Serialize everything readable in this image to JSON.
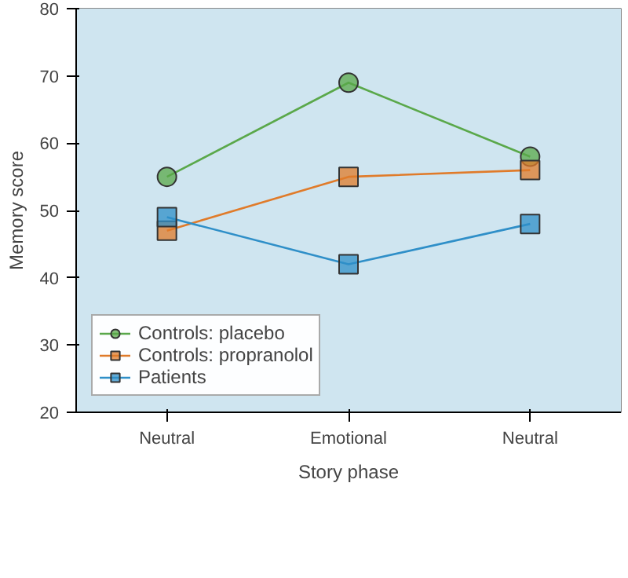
{
  "chart_data": {
    "type": "line",
    "xlabel": "Story phase",
    "ylabel": "Memory score",
    "categories": [
      "Neutral",
      "Emotional",
      "Neutral"
    ],
    "ylim": [
      20,
      80
    ],
    "yticks": [
      20,
      30,
      40,
      50,
      60,
      70,
      80
    ],
    "grid": false,
    "legend": "bottom left",
    "series": [
      {
        "name": "Controls: placebo",
        "color": "#5aa84a",
        "marker": "circle",
        "values": [
          55,
          69,
          58
        ]
      },
      {
        "name": "Controls: propranolol",
        "color": "#e07b2a",
        "marker": "square",
        "values": [
          47,
          55,
          56
        ]
      },
      {
        "name": "Patients",
        "color": "#2f8fc8",
        "marker": "square",
        "values": [
          49,
          42,
          48
        ]
      }
    ]
  }
}
